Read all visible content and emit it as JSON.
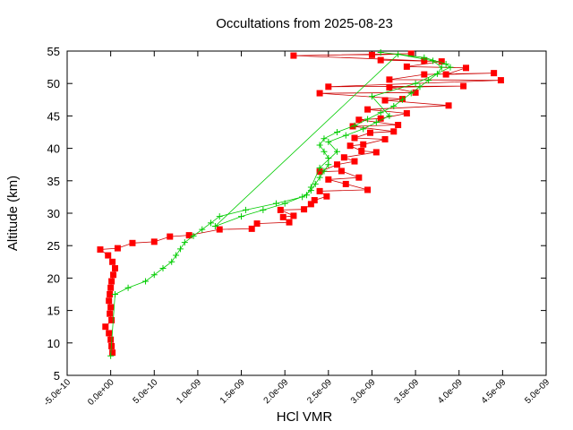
{
  "chart_data": {
    "type": "line",
    "title": "Occultations from 2025-08-23",
    "xlabel": "HCl VMR",
    "ylabel": "Altitude (km)",
    "xlim": [
      -5e-10,
      5e-09
    ],
    "ylim": [
      5,
      55
    ],
    "x_ticks": [
      -5e-10,
      0,
      5e-10,
      1e-09,
      1.5e-09,
      2e-09,
      2.5e-09,
      3e-09,
      3.5e-09,
      4e-09,
      4.5e-09,
      5e-09
    ],
    "x_tick_labels": [
      "-5.0e-10",
      "0.0e+00",
      "5.0e-10",
      "1.0e-09",
      "1.5e-09",
      "2.0e-09",
      "2.5e-09",
      "3.0e-09",
      "3.5e-09",
      "4.0e-09",
      "4.5e-09",
      "5.0e-09"
    ],
    "y_ticks": [
      5,
      10,
      15,
      20,
      25,
      30,
      35,
      40,
      45,
      50,
      55
    ],
    "y_tick_labels": [
      "5",
      "10",
      "15",
      "20",
      "25",
      "30",
      "35",
      "40",
      "45",
      "50",
      "55"
    ],
    "grid": false,
    "colors": {
      "red": "#ff0000",
      "red_line": "#cc0000",
      "green": "#00cc00"
    },
    "series": [
      {
        "marker": "square",
        "color": "#ff0000",
        "points": [
          [
            2e-11,
            8.5
          ],
          [
            1e-11,
            9.5
          ],
          [
            0.0,
            10.5
          ],
          [
            -2e-11,
            11.5
          ],
          [
            -6e-11,
            12.5
          ],
          [
            1e-11,
            13.5
          ],
          [
            -1e-11,
            14.5
          ],
          [
            0.0,
            15.5
          ],
          [
            -2e-11,
            16.5
          ],
          [
            -1e-11,
            17.5
          ],
          [
            0.0,
            18.5
          ],
          [
            1e-11,
            19.5
          ],
          [
            3e-11,
            20.5
          ],
          [
            5e-11,
            21.5
          ],
          [
            2e-11,
            22.5
          ],
          [
            -3e-11,
            23.5
          ],
          [
            -1.2e-10,
            24.4
          ],
          [
            8e-11,
            24.6
          ],
          [
            2.5e-10,
            25.4
          ],
          [
            5e-10,
            25.6
          ],
          [
            6.8e-10,
            26.4
          ],
          [
            9e-10,
            26.6
          ],
          [
            1.25e-09,
            27.5
          ],
          [
            1.62e-09,
            27.6
          ],
          [
            1.68e-09,
            28.4
          ],
          [
            2.05e-09,
            28.6
          ],
          [
            1.98e-09,
            29.4
          ],
          [
            2.1e-09,
            29.6
          ],
          [
            1.95e-09,
            30.5
          ],
          [
            2.22e-09,
            30.6
          ],
          [
            2.3e-09,
            31.4
          ],
          [
            2.34e-09,
            32.0
          ],
          [
            2.48e-09,
            32.6
          ],
          [
            2.4e-09,
            33.4
          ],
          [
            2.95e-09,
            33.6
          ],
          [
            2.7e-09,
            34.5
          ],
          [
            2.5e-09,
            35.2
          ],
          [
            2.85e-09,
            35.5
          ],
          [
            2.65e-09,
            36.5
          ],
          [
            2.4e-09,
            36.4
          ],
          [
            2.6e-09,
            37.5
          ],
          [
            2.8e-09,
            38.0
          ],
          [
            2.68e-09,
            38.6
          ],
          [
            3.05e-09,
            39.4
          ],
          [
            2.88e-09,
            39.6
          ],
          [
            2.75e-09,
            40.4
          ],
          [
            2.9e-09,
            40.6
          ],
          [
            3.15e-09,
            41.4
          ],
          [
            2.8e-09,
            41.6
          ],
          [
            2.98e-09,
            42.4
          ],
          [
            3.25e-09,
            42.6
          ],
          [
            2.78e-09,
            43.4
          ],
          [
            3.3e-09,
            43.6
          ],
          [
            2.85e-09,
            44.4
          ],
          [
            3.1e-09,
            44.6
          ],
          [
            3.4e-09,
            45.4
          ],
          [
            2.95e-09,
            46.0
          ],
          [
            3.88e-09,
            46.6
          ],
          [
            3.15e-09,
            47.4
          ],
          [
            3.35e-09,
            47.6
          ],
          [
            2.4e-09,
            48.5
          ],
          [
            3.5e-09,
            48.6
          ],
          [
            3.2e-09,
            49.4
          ],
          [
            4.05e-09,
            49.6
          ],
          [
            2.5e-09,
            49.5
          ],
          [
            4.48e-09,
            50.5
          ],
          [
            3.2e-09,
            50.6
          ],
          [
            3.6e-09,
            51.4
          ],
          [
            4.4e-09,
            51.6
          ],
          [
            3.85e-09,
            51.4
          ],
          [
            4.08e-09,
            52.4
          ],
          [
            3.4e-09,
            52.6
          ],
          [
            3.8e-09,
            53.4
          ],
          [
            3.1e-09,
            53.6
          ],
          [
            3.6e-09,
            53.5
          ],
          [
            2.1e-09,
            54.3
          ],
          [
            3.45e-09,
            54.6
          ],
          [
            3e-09,
            54.4
          ]
        ]
      },
      {
        "marker": "plus",
        "color": "#00cc00",
        "points": [
          [
            0.0,
            8.0
          ],
          [
            5e-11,
            17.5
          ],
          [
            2e-10,
            18.5
          ],
          [
            4e-10,
            19.5
          ],
          [
            5e-10,
            20.5
          ],
          [
            6e-10,
            21.5
          ],
          [
            7e-10,
            22.5
          ],
          [
            7.5e-10,
            23.5
          ],
          [
            8e-10,
            24.5
          ],
          [
            8.5e-10,
            25.5
          ],
          [
            9.5e-10,
            26.5
          ],
          [
            1.05e-09,
            27.5
          ],
          [
            1.15e-09,
            28.5
          ],
          [
            1.25e-09,
            29.5
          ],
          [
            1.55e-09,
            30.5
          ],
          [
            1.9e-09,
            31.5
          ],
          [
            2.2e-09,
            32.5
          ],
          [
            2.3e-09,
            33.5
          ],
          [
            2.35e-09,
            34.5
          ],
          [
            2.4e-09,
            35.5
          ],
          [
            2.45e-09,
            36.5
          ],
          [
            2.5e-09,
            37.5
          ],
          [
            2.5e-09,
            38.5
          ],
          [
            2.45e-09,
            39.5
          ],
          [
            2.4e-09,
            40.5
          ],
          [
            2.45e-09,
            41.5
          ],
          [
            2.6e-09,
            42.5
          ],
          [
            2.8e-09,
            43.5
          ],
          [
            2.95e-09,
            44.5
          ],
          [
            3.1e-09,
            45.5
          ],
          [
            3.25e-09,
            46.5
          ],
          [
            3.35e-09,
            47.5
          ],
          [
            3.45e-09,
            48.5
          ],
          [
            3.55e-09,
            49.5
          ],
          [
            3.65e-09,
            50.5
          ],
          [
            3.75e-09,
            51.5
          ],
          [
            3.8e-09,
            52.5
          ],
          [
            3.7e-09,
            53.5
          ],
          [
            3.3e-09,
            54.5
          ],
          [
            1.2e-09,
            28.0
          ],
          [
            1.5e-09,
            29.5
          ],
          [
            1.75e-09,
            30.5
          ],
          [
            2e-09,
            31.5
          ],
          [
            2.25e-09,
            32.8
          ],
          [
            2.3e-09,
            34.0
          ],
          [
            2.4e-09,
            37.0
          ],
          [
            2.6e-09,
            39.5
          ],
          [
            2.5e-09,
            41.0
          ],
          [
            2.7e-09,
            42.0
          ],
          [
            2.9e-09,
            43.0
          ],
          [
            3.05e-09,
            44.0
          ],
          [
            3.2e-09,
            45.0
          ],
          [
            3e-09,
            48.0
          ],
          [
            3.5e-09,
            50.0
          ],
          [
            3.9e-09,
            52.5
          ],
          [
            3.85e-09,
            53.0
          ],
          [
            3.6e-09,
            54.0
          ],
          [
            3.1e-09,
            54.8
          ]
        ]
      }
    ]
  }
}
